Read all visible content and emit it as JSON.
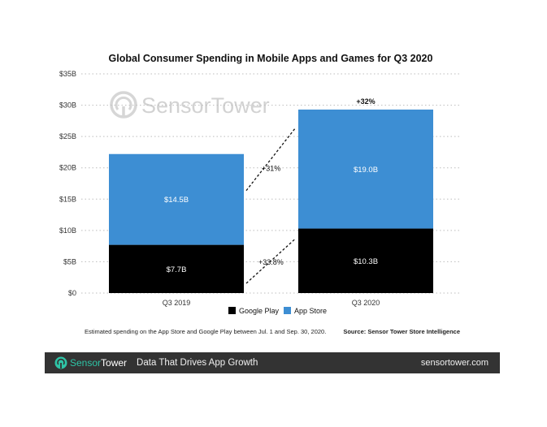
{
  "chart_data": {
    "type": "bar",
    "stacked": true,
    "title": "Global Consumer Spending in Mobile Apps and Games for Q3 2020",
    "categories": [
      "Q3 2019",
      "Q3 2020"
    ],
    "series": [
      {
        "name": "Google Play",
        "values": [
          7.7,
          10.3
        ],
        "labels": [
          "$7.7B",
          "$10.3B"
        ],
        "color": "#000000"
      },
      {
        "name": "App Store",
        "values": [
          14.5,
          19.0
        ],
        "labels": [
          "$14.5B",
          "$19.0B"
        ],
        "color": "#3d8ed3"
      }
    ],
    "ylim": [
      0,
      35
    ],
    "yticks": [
      0,
      5,
      10,
      15,
      20,
      25,
      30,
      35
    ],
    "ytick_labels": [
      "$0",
      "$5B",
      "$10B",
      "$15B",
      "$20B",
      "$25B",
      "$30B",
      "$35B"
    ],
    "xlabel": "",
    "ylabel": "",
    "grid": "horizontal-dotted",
    "legend": "bottom-center",
    "annotations": {
      "total_growth": "+32%",
      "app_store_growth": "+31%",
      "google_play_growth": "+33.8%"
    }
  },
  "watermark": {
    "text_a": "Sensor",
    "text_b": "Tower",
    "icon": "sensortower-logo-icon"
  },
  "notes": {
    "left": "Estimated spending on the App Store and Google Play between Jul. 1 and Sep. 30, 2020.",
    "right": "Source: Sensor Tower Store Intelligence"
  },
  "footer": {
    "brand_a": "Sensor",
    "brand_b": "Tower",
    "tagline": "Data That Drives App Growth",
    "site": "sensortower.com",
    "brand_color": "#2ec4a6",
    "background": "#333333"
  }
}
